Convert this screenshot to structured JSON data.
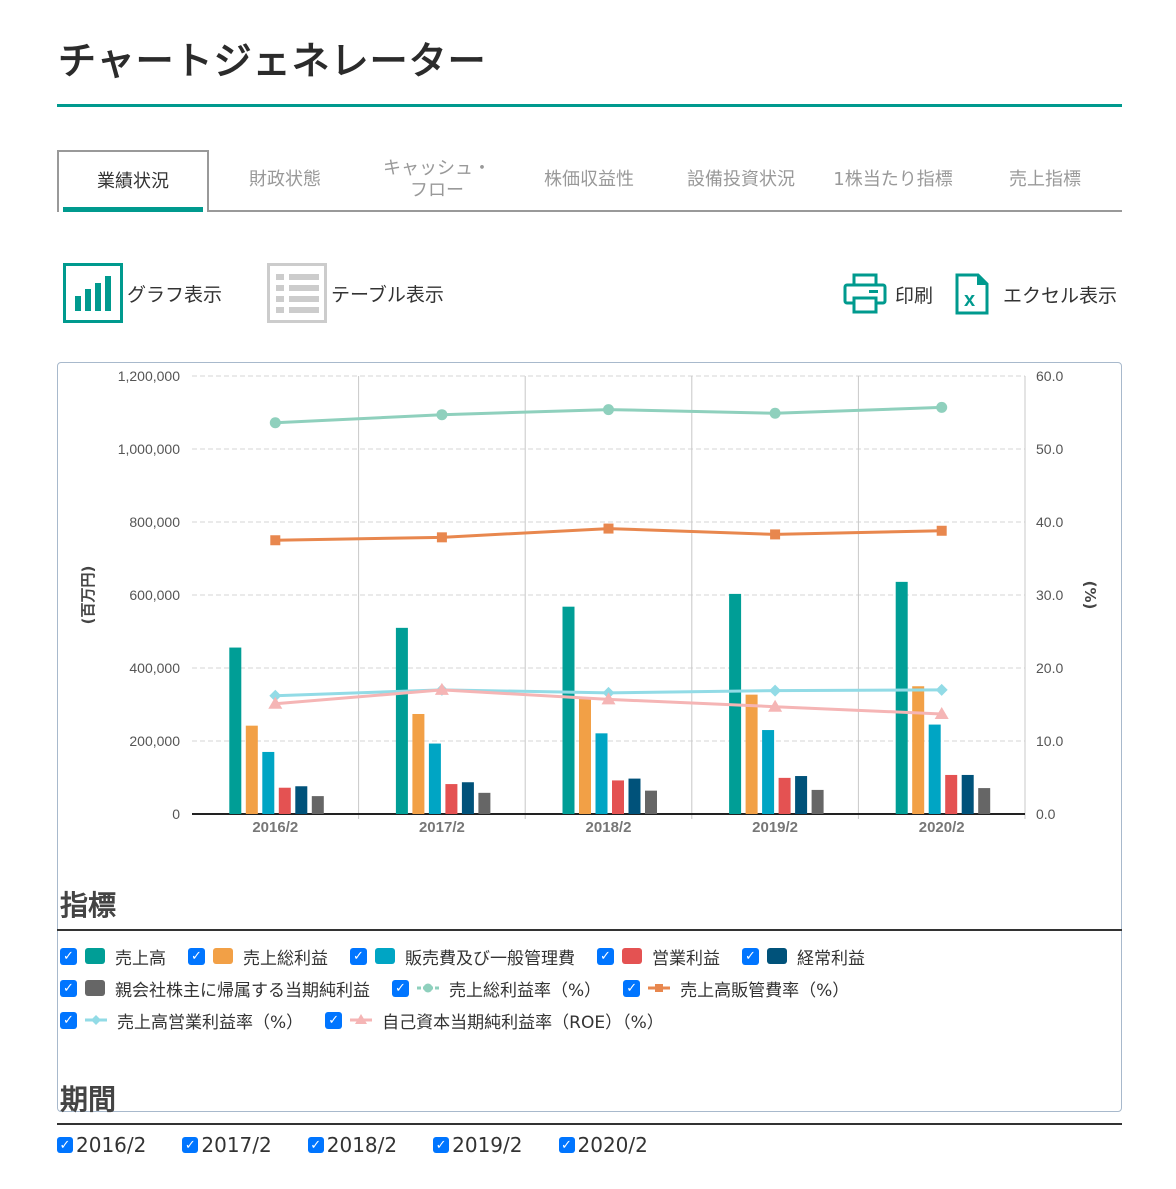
{
  "header": {
    "title": "チャートジェネレーター"
  },
  "tabs": [
    {
      "label": "業績状況",
      "active": true
    },
    {
      "label": "財政状態",
      "active": false
    },
    {
      "label": "キャッシュ・\nフロー",
      "active": false
    },
    {
      "label": "株価収益性",
      "active": false
    },
    {
      "label": "設備投資状況",
      "active": false
    },
    {
      "label": "1株当たり指標",
      "active": false
    },
    {
      "label": "売上指標",
      "active": false
    }
  ],
  "toolbar": {
    "graph_view": "グラフ表示",
    "table_view": "テーブル表示",
    "print": "印刷",
    "excel": "エクセル表示"
  },
  "colors": {
    "accent": "#009a8e",
    "sales": "#009e96",
    "gross_profit": "#f2a046",
    "sga": "#00a5c4",
    "operating_income": "#e45252",
    "ordinary_income": "#00527a",
    "net_income": "#666666",
    "gross_margin": "#8fd0bd",
    "sga_ratio": "#e8874e",
    "operating_margin": "#92dbe6",
    "roe": "#f5b5b5"
  },
  "chart_data": {
    "type": "bar",
    "title": "",
    "categories": [
      "2016/2",
      "2017/2",
      "2018/2",
      "2019/2",
      "2020/2"
    ],
    "ylabel": "(百万円)",
    "y2label": "(%)",
    "ylim": [
      0,
      1200000
    ],
    "y2lim": [
      0,
      60
    ],
    "yticks": [
      "1,200,000",
      "1,000,000",
      "800,000",
      "600,000",
      "400,000",
      "200,000",
      "0"
    ],
    "y2ticks": [
      "60.0",
      "50.0",
      "40.0",
      "30.0",
      "20.0",
      "10.0",
      "0.0"
    ],
    "grid": true,
    "legend_position": "bottom",
    "series": [
      {
        "name": "売上高",
        "type": "bar",
        "axis": "left",
        "values": [
          456000,
          510000,
          568000,
          603000,
          636000
        ]
      },
      {
        "name": "売上総利益",
        "type": "bar",
        "axis": "left",
        "values": [
          242000,
          274000,
          316000,
          327000,
          350000
        ]
      },
      {
        "name": "販売費及び一般管理費",
        "type": "bar",
        "axis": "left",
        "values": [
          170000,
          193000,
          221000,
          230000,
          245000
        ]
      },
      {
        "name": "営業利益",
        "type": "bar",
        "axis": "left",
        "values": [
          72000,
          82000,
          92000,
          99000,
          107000
        ]
      },
      {
        "name": "経常利益",
        "type": "bar",
        "axis": "left",
        "values": [
          76000,
          87000,
          97000,
          104000,
          107000
        ]
      },
      {
        "name": "親会社株主に帰属する当期純利益",
        "type": "bar",
        "axis": "left",
        "values": [
          49000,
          58000,
          64000,
          66000,
          71000
        ]
      },
      {
        "name": "売上総利益率（%）",
        "type": "line",
        "marker": "circle",
        "axis": "right",
        "values": [
          53.6,
          54.7,
          55.4,
          54.9,
          55.7
        ]
      },
      {
        "name": "売上高販管費率（%）",
        "type": "line",
        "marker": "square",
        "axis": "right",
        "values": [
          37.5,
          37.9,
          39.1,
          38.3,
          38.8
        ]
      },
      {
        "name": "売上高営業利益率（%）",
        "type": "line",
        "marker": "diamond",
        "axis": "right",
        "values": [
          16.2,
          17.0,
          16.6,
          16.9,
          17.0
        ]
      },
      {
        "name": "自己資本当期純利益率（ROE）（%）",
        "type": "line",
        "marker": "triangle",
        "axis": "right",
        "values": [
          15.1,
          17.0,
          15.7,
          14.7,
          13.7
        ]
      }
    ]
  },
  "indicators": {
    "heading": "指標",
    "rows": [
      [
        {
          "label": "売上高",
          "kind": "bar",
          "color": "#009e96",
          "checked": true
        },
        {
          "label": "売上総利益",
          "kind": "bar",
          "color": "#f2a046",
          "checked": true
        },
        {
          "label": "販売費及び一般管理費",
          "kind": "bar",
          "color": "#00a5c4",
          "checked": true
        },
        {
          "label": "営業利益",
          "kind": "bar",
          "color": "#e45252",
          "checked": true
        },
        {
          "label": "経常利益",
          "kind": "bar",
          "color": "#00527a",
          "checked": true
        }
      ],
      [
        {
          "label": "親会社株主に帰属する当期純利益",
          "kind": "bar",
          "color": "#666666",
          "checked": true
        },
        {
          "label": "売上総利益率（%）",
          "kind": "circle",
          "color": "#8fd0bd",
          "checked": true
        },
        {
          "label": "売上高販管費率（%）",
          "kind": "square",
          "color": "#e8874e",
          "checked": true
        }
      ],
      [
        {
          "label": "売上高営業利益率（%）",
          "kind": "diamond",
          "color": "#92dbe6",
          "checked": true
        },
        {
          "label": "自己資本当期純利益率（ROE）（%）",
          "kind": "triangle",
          "color": "#f5b5b5",
          "checked": true
        }
      ]
    ]
  },
  "period": {
    "heading": "期間",
    "items": [
      {
        "label": "2016/2",
        "checked": true
      },
      {
        "label": "2017/2",
        "checked": true
      },
      {
        "label": "2018/2",
        "checked": true
      },
      {
        "label": "2019/2",
        "checked": true
      },
      {
        "label": "2020/2",
        "checked": true
      }
    ]
  }
}
